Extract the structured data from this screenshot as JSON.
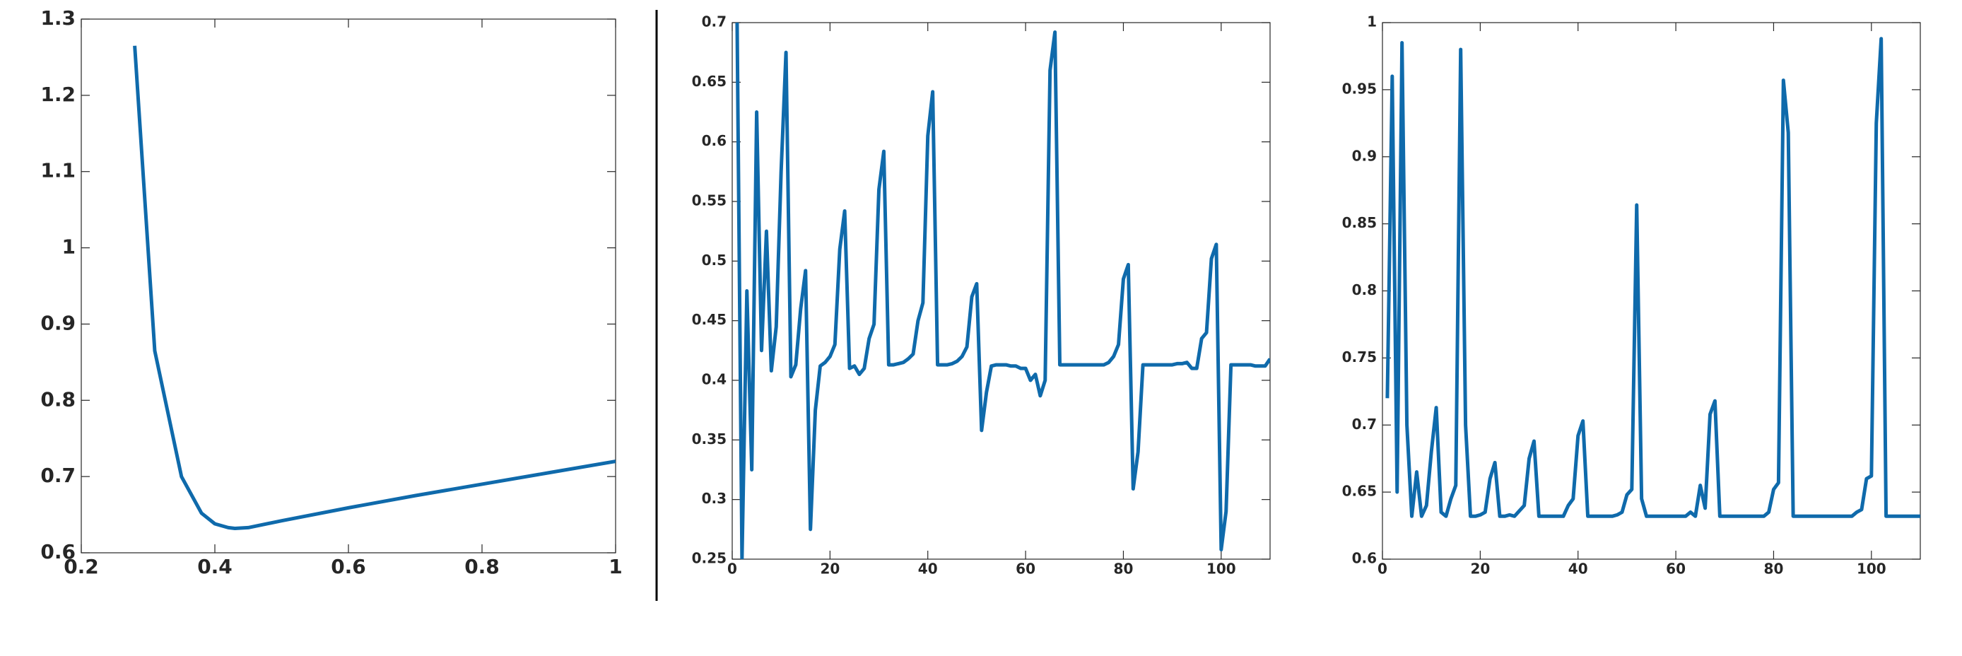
{
  "chart_data": [
    {
      "type": "line",
      "color": "#0f6aab",
      "x": [
        0.28,
        0.31,
        0.35,
        0.37,
        0.38,
        0.4,
        0.42,
        0.43,
        0.45,
        0.5,
        0.6,
        0.7,
        0.8,
        0.9,
        1.0
      ],
      "series": [
        {
          "color": "#0f6aab",
          "values": [
            1.265,
            0.865,
            0.7,
            0.668,
            0.652,
            0.638,
            0.633,
            0.632,
            0.633,
            0.642,
            0.659,
            0.675,
            0.69,
            0.705,
            0.72
          ]
        }
      ],
      "xlim": [
        0.2,
        1
      ],
      "ylim": [
        0.6,
        1.3
      ],
      "xticks": [
        0.2,
        0.4,
        0.6,
        0.8,
        1
      ],
      "yticks": [
        0.6,
        0.7,
        0.8,
        0.9,
        1,
        1.1,
        1.2,
        1.3
      ]
    },
    {
      "type": "line",
      "color": "#0f6aab",
      "x": [
        1,
        2,
        3,
        4,
        5,
        6,
        7,
        8,
        9,
        10,
        11,
        12,
        13,
        14,
        15,
        16,
        17,
        18,
        19,
        20,
        21,
        22,
        23,
        24,
        25,
        26,
        27,
        28,
        29,
        30,
        31,
        32,
        33,
        34,
        35,
        36,
        37,
        38,
        39,
        40,
        41,
        42,
        43,
        44,
        45,
        46,
        47,
        48,
        49,
        50,
        51,
        52,
        53,
        54,
        55,
        56,
        57,
        58,
        59,
        60,
        61,
        62,
        63,
        64,
        65,
        66,
        67,
        68,
        69,
        70,
        71,
        72,
        73,
        74,
        75,
        76,
        77,
        78,
        79,
        80,
        81,
        82,
        83,
        84,
        85,
        86,
        87,
        88,
        89,
        90,
        91,
        92,
        93,
        94,
        95,
        96,
        97,
        98,
        99,
        100,
        101,
        102,
        103,
        104,
        105,
        106,
        107,
        108,
        109,
        110
      ],
      "series": [
        {
          "color": "#0f6aab",
          "values": [
            0.7,
            0.25,
            0.475,
            0.325,
            0.625,
            0.425,
            0.525,
            0.408,
            0.445,
            0.575,
            0.675,
            0.403,
            0.413,
            0.46,
            0.492,
            0.275,
            0.375,
            0.412,
            0.415,
            0.42,
            0.43,
            0.51,
            0.542,
            0.41,
            0.412,
            0.405,
            0.41,
            0.435,
            0.447,
            0.56,
            0.592,
            0.413,
            0.413,
            0.414,
            0.415,
            0.418,
            0.422,
            0.45,
            0.465,
            0.605,
            0.642,
            0.413,
            0.413,
            0.413,
            0.414,
            0.416,
            0.42,
            0.428,
            0.47,
            0.481,
            0.358,
            0.39,
            0.412,
            0.413,
            0.413,
            0.413,
            0.412,
            0.412,
            0.41,
            0.41,
            0.4,
            0.405,
            0.387,
            0.4,
            0.66,
            0.692,
            0.413,
            0.413,
            0.413,
            0.413,
            0.413,
            0.413,
            0.413,
            0.413,
            0.413,
            0.413,
            0.415,
            0.42,
            0.43,
            0.485,
            0.497,
            0.309,
            0.34,
            0.413,
            0.413,
            0.413,
            0.413,
            0.413,
            0.413,
            0.413,
            0.414,
            0.414,
            0.415,
            0.41,
            0.41,
            0.435,
            0.44,
            0.502,
            0.514,
            0.258,
            0.29,
            0.413,
            0.413,
            0.413,
            0.413,
            0.413,
            0.412,
            0.412,
            0.412,
            0.418
          ]
        }
      ],
      "xlim": [
        0,
        110
      ],
      "ylim": [
        0.25,
        0.7
      ],
      "xticks": [
        0,
        20,
        40,
        60,
        80,
        100
      ],
      "yticks": [
        0.25,
        0.3,
        0.35,
        0.4,
        0.45,
        0.5,
        0.55,
        0.6,
        0.65,
        0.7
      ]
    },
    {
      "type": "line",
      "color": "#0f6aab",
      "x": [
        1,
        2,
        3,
        4,
        5,
        6,
        7,
        8,
        9,
        10,
        11,
        12,
        13,
        14,
        15,
        16,
        17,
        18,
        19,
        20,
        21,
        22,
        23,
        24,
        25,
        26,
        27,
        28,
        29,
        30,
        31,
        32,
        33,
        34,
        35,
        36,
        37,
        38,
        39,
        40,
        41,
        42,
        43,
        44,
        45,
        46,
        47,
        48,
        49,
        50,
        51,
        52,
        53,
        54,
        55,
        56,
        57,
        58,
        59,
        60,
        61,
        62,
        63,
        64,
        65,
        66,
        67,
        68,
        69,
        70,
        71,
        72,
        73,
        74,
        75,
        76,
        77,
        78,
        79,
        80,
        81,
        82,
        83,
        84,
        85,
        86,
        87,
        88,
        89,
        90,
        91,
        92,
        93,
        94,
        95,
        96,
        97,
        98,
        99,
        100,
        101,
        102,
        103,
        104,
        105,
        106,
        107,
        108,
        109,
        110
      ],
      "series": [
        {
          "color": "#0f6aab",
          "values": [
            0.72,
            0.96,
            0.65,
            0.985,
            0.7,
            0.632,
            0.665,
            0.632,
            0.64,
            0.68,
            0.713,
            0.635,
            0.632,
            0.645,
            0.655,
            0.98,
            0.7,
            0.632,
            0.632,
            0.633,
            0.635,
            0.66,
            0.672,
            0.632,
            0.632,
            0.633,
            0.632,
            0.636,
            0.64,
            0.675,
            0.688,
            0.632,
            0.632,
            0.632,
            0.632,
            0.632,
            0.632,
            0.64,
            0.645,
            0.692,
            0.703,
            0.632,
            0.632,
            0.632,
            0.632,
            0.632,
            0.632,
            0.633,
            0.635,
            0.648,
            0.652,
            0.864,
            0.645,
            0.632,
            0.632,
            0.632,
            0.632,
            0.632,
            0.632,
            0.632,
            0.632,
            0.632,
            0.635,
            0.632,
            0.655,
            0.638,
            0.708,
            0.718,
            0.632,
            0.632,
            0.632,
            0.632,
            0.632,
            0.632,
            0.632,
            0.632,
            0.632,
            0.632,
            0.635,
            0.652,
            0.657,
            0.957,
            0.918,
            0.632,
            0.632,
            0.632,
            0.632,
            0.632,
            0.632,
            0.632,
            0.632,
            0.632,
            0.632,
            0.632,
            0.632,
            0.632,
            0.635,
            0.637,
            0.66,
            0.662,
            0.925,
            0.988,
            0.632,
            0.632,
            0.632,
            0.632,
            0.632,
            0.632,
            0.632,
            0.632
          ]
        }
      ],
      "xlim": [
        0,
        110
      ],
      "ylim": [
        0.6,
        1
      ],
      "xticks": [
        0,
        20,
        40,
        60,
        80,
        100
      ],
      "yticks": [
        0.6,
        0.65,
        0.7,
        0.75,
        0.8,
        0.85,
        0.9,
        0.95,
        1
      ]
    }
  ]
}
